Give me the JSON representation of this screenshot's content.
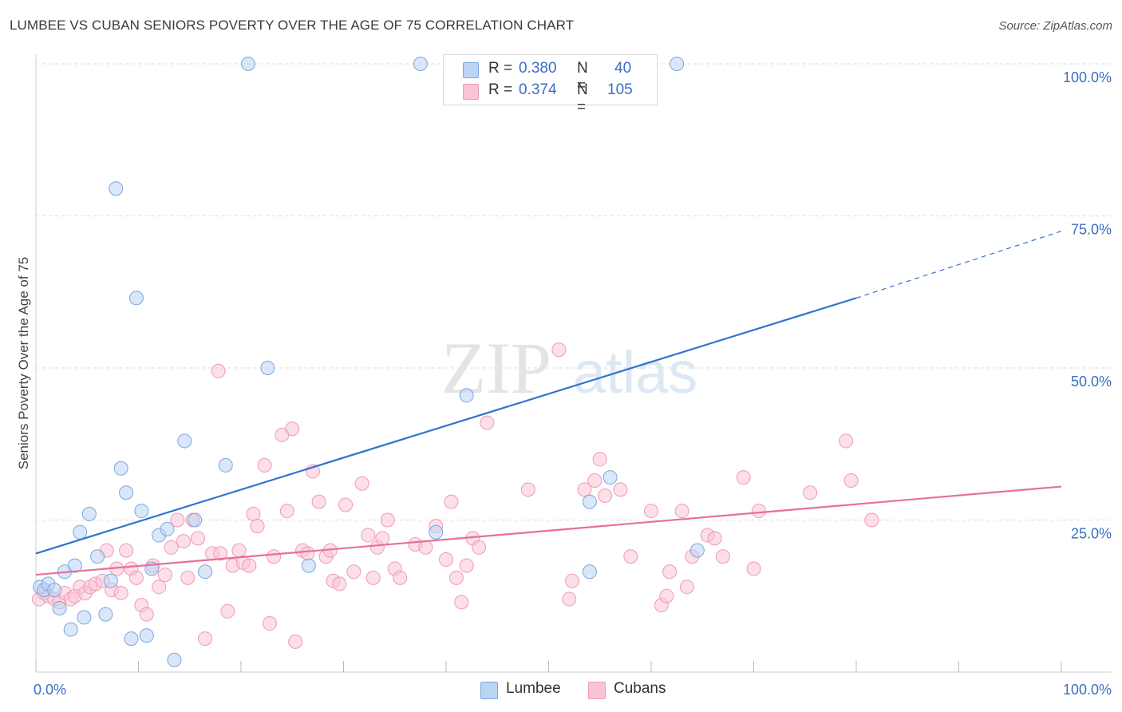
{
  "title": "LUMBEE VS CUBAN SENIORS POVERTY OVER THE AGE OF 75 CORRELATION CHART",
  "source": "Source: ZipAtlas.com",
  "watermark": {
    "zip": "ZIP",
    "atlas": "atlas"
  },
  "colors": {
    "lumbee_fill": "#bcd4f3",
    "lumbee_stroke": "#7aa6e0",
    "lumbee_line": "#2f74d0",
    "cubans_fill": "#f9c5d5",
    "cubans_stroke": "#ef9ab5",
    "cubans_line": "#e86f97",
    "tick_label": "#3a6fc4",
    "grid": "#dddddd"
  },
  "legend": {
    "lumbee": {
      "r_label": "R =",
      "r_value": "0.380",
      "n_label": "N =",
      "n_value": "40"
    },
    "cubans": {
      "r_label": "R =",
      "r_value": "0.374",
      "n_label": "N =",
      "n_value": "105"
    }
  },
  "bottom_legend": {
    "lumbee": "Lumbee",
    "cubans": "Cubans"
  },
  "chart_data": {
    "type": "scatter",
    "xlabel": "",
    "ylabel": "Seniors Poverty Over the Age of 75",
    "xlim": [
      0,
      100
    ],
    "ylim": [
      0,
      100
    ],
    "x_tick_labels": [
      {
        "value": 0,
        "label": "0.0%"
      },
      {
        "value": 100,
        "label": "100.0%"
      }
    ],
    "y_tick_labels": [
      {
        "value": 25,
        "label": "25.0%"
      },
      {
        "value": 50,
        "label": "50.0%"
      },
      {
        "value": 75,
        "label": "75.0%"
      },
      {
        "value": 100,
        "label": "100.0%"
      }
    ],
    "grid": true,
    "series": [
      {
        "name": "Lumbee",
        "points": [
          [
            0.4,
            14
          ],
          [
            0.8,
            13.5
          ],
          [
            1.2,
            14.5
          ],
          [
            1.8,
            13.5
          ],
          [
            2.3,
            10.5
          ],
          [
            2.8,
            16.5
          ],
          [
            3.4,
            7
          ],
          [
            3.8,
            17.5
          ],
          [
            4.3,
            23
          ],
          [
            4.7,
            9
          ],
          [
            5.2,
            26
          ],
          [
            6.0,
            19
          ],
          [
            6.8,
            9.5
          ],
          [
            7.3,
            15
          ],
          [
            7.8,
            79.5
          ],
          [
            8.3,
            33.5
          ],
          [
            8.8,
            29.5
          ],
          [
            9.3,
            5.5
          ],
          [
            9.8,
            61.5
          ],
          [
            10.3,
            26.5
          ],
          [
            10.8,
            6
          ],
          [
            11.3,
            17
          ],
          [
            12.0,
            22.5
          ],
          [
            12.8,
            23.5
          ],
          [
            13.5,
            2
          ],
          [
            14.5,
            38
          ],
          [
            15.5,
            25
          ],
          [
            16.5,
            16.5
          ],
          [
            18.5,
            34
          ],
          [
            20.7,
            100
          ],
          [
            22.6,
            50
          ],
          [
            26.6,
            17.5
          ],
          [
            37.5,
            100
          ],
          [
            39.0,
            23
          ],
          [
            42.0,
            45.5
          ],
          [
            54.0,
            16.5
          ],
          [
            54.0,
            28
          ],
          [
            56.0,
            32
          ],
          [
            62.5,
            100
          ],
          [
            64.5,
            20
          ]
        ]
      },
      {
        "name": "Cubans",
        "points": [
          [
            0.3,
            12
          ],
          [
            0.8,
            13
          ],
          [
            1.2,
            12.5
          ],
          [
            1.8,
            12
          ],
          [
            2.3,
            11.5
          ],
          [
            2.8,
            13
          ],
          [
            3.4,
            12
          ],
          [
            3.8,
            12.5
          ],
          [
            4.3,
            14
          ],
          [
            4.8,
            13
          ],
          [
            5.3,
            14
          ],
          [
            5.8,
            14.5
          ],
          [
            6.5,
            15
          ],
          [
            6.9,
            20
          ],
          [
            7.4,
            13.5
          ],
          [
            7.9,
            17
          ],
          [
            8.3,
            13
          ],
          [
            8.8,
            20
          ],
          [
            9.3,
            17
          ],
          [
            9.8,
            15.5
          ],
          [
            10.3,
            11
          ],
          [
            10.8,
            9.5
          ],
          [
            11.4,
            17.5
          ],
          [
            12.0,
            14
          ],
          [
            12.6,
            16
          ],
          [
            13.2,
            20.5
          ],
          [
            13.8,
            25
          ],
          [
            14.4,
            21.5
          ],
          [
            14.8,
            15.5
          ],
          [
            15.3,
            25
          ],
          [
            15.8,
            22
          ],
          [
            16.5,
            5.5
          ],
          [
            17.2,
            19.5
          ],
          [
            17.8,
            49.5
          ],
          [
            18.0,
            19.5
          ],
          [
            18.7,
            10
          ],
          [
            19.2,
            17.5
          ],
          [
            19.8,
            20
          ],
          [
            20.2,
            18
          ],
          [
            20.8,
            17.5
          ],
          [
            21.2,
            26
          ],
          [
            21.6,
            24
          ],
          [
            22.3,
            34
          ],
          [
            22.8,
            8
          ],
          [
            23.2,
            19
          ],
          [
            24.0,
            39
          ],
          [
            24.5,
            26.5
          ],
          [
            25.0,
            40
          ],
          [
            25.3,
            5
          ],
          [
            26.0,
            20
          ],
          [
            26.5,
            19.5
          ],
          [
            27.0,
            33
          ],
          [
            27.6,
            28
          ],
          [
            28.3,
            19
          ],
          [
            28.7,
            20
          ],
          [
            29.0,
            15
          ],
          [
            29.6,
            14.5
          ],
          [
            30.2,
            27.5
          ],
          [
            31.0,
            16.5
          ],
          [
            31.8,
            31
          ],
          [
            32.4,
            22.5
          ],
          [
            32.9,
            15.5
          ],
          [
            33.3,
            20.5
          ],
          [
            33.8,
            22
          ],
          [
            34.3,
            25
          ],
          [
            35.0,
            17
          ],
          [
            35.5,
            15.5
          ],
          [
            37.0,
            21
          ],
          [
            38.0,
            20.5
          ],
          [
            39.0,
            24
          ],
          [
            40.0,
            18.5
          ],
          [
            40.5,
            28
          ],
          [
            41.0,
            15.5
          ],
          [
            41.5,
            11.5
          ],
          [
            42.0,
            17.5
          ],
          [
            42.6,
            22
          ],
          [
            43.2,
            20.5
          ],
          [
            44.0,
            41
          ],
          [
            48.0,
            30
          ],
          [
            51.0,
            53
          ],
          [
            52.0,
            12
          ],
          [
            52.3,
            15
          ],
          [
            53.5,
            30
          ],
          [
            54.5,
            31.5
          ],
          [
            55.0,
            35
          ],
          [
            55.5,
            29
          ],
          [
            57.0,
            30
          ],
          [
            58.0,
            19
          ],
          [
            60.0,
            26.5
          ],
          [
            61.0,
            11
          ],
          [
            61.5,
            12.5
          ],
          [
            61.8,
            16.5
          ],
          [
            63.0,
            26.5
          ],
          [
            63.5,
            14
          ],
          [
            64.0,
            19
          ],
          [
            65.5,
            22.5
          ],
          [
            66.2,
            22
          ],
          [
            67.0,
            19
          ],
          [
            69.0,
            32
          ],
          [
            70.0,
            17
          ],
          [
            70.5,
            26.5
          ],
          [
            75.5,
            29.5
          ],
          [
            79.0,
            38
          ],
          [
            79.5,
            31.5
          ],
          [
            81.5,
            25
          ]
        ]
      }
    ],
    "trendlines": [
      {
        "series": "Lumbee",
        "x_start": 0,
        "y_start": 19.5,
        "x_end": 80,
        "y_end": 61.5,
        "dashed_to_x": 100,
        "dashed_to_y": 72.5
      },
      {
        "series": "Cubans",
        "x_start": 0,
        "y_start": 16,
        "x_end": 100,
        "y_end": 30.5
      }
    ]
  }
}
